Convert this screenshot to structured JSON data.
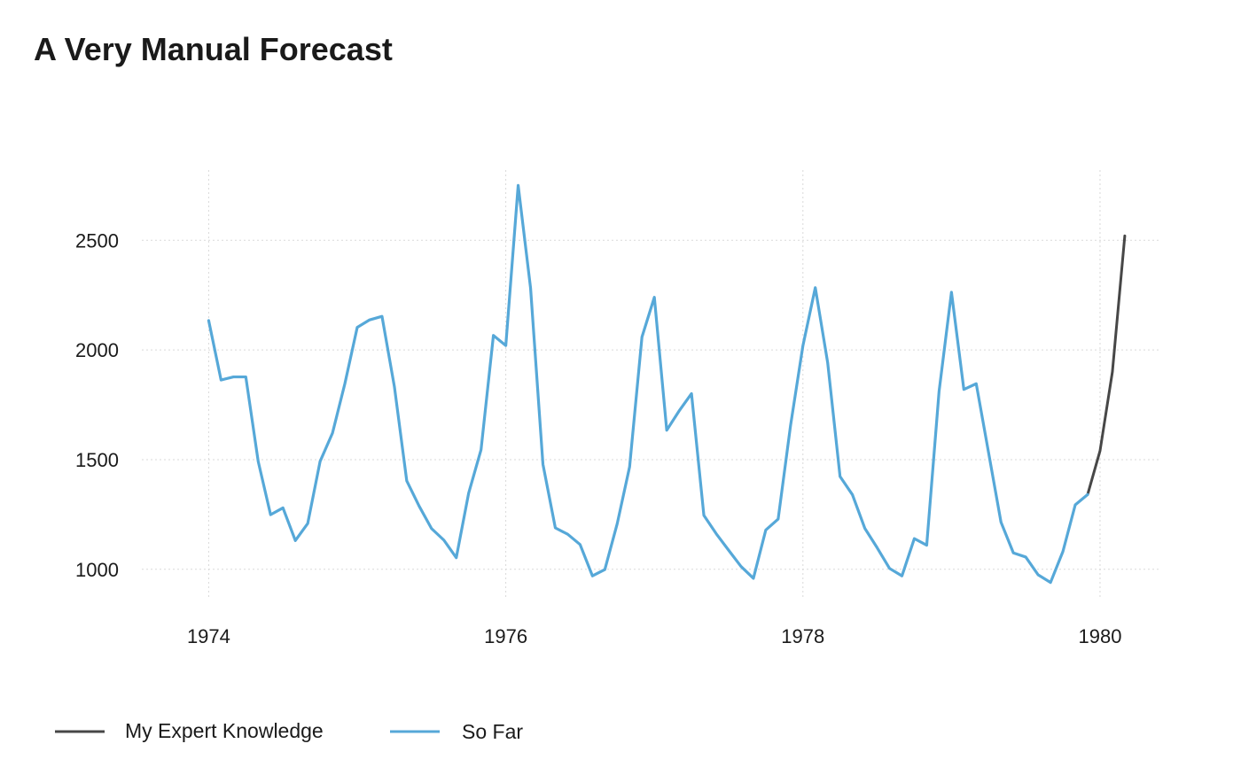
{
  "chart_data": {
    "type": "line",
    "title": "A Very Manual Forecast",
    "xlabel": "",
    "ylabel": "",
    "xlim": [
      1973.55,
      1980.4
    ],
    "ylim": [
      870,
      2820
    ],
    "x_ticks": [
      1974,
      1976,
      1978,
      1980
    ],
    "x_tick_labels": [
      "1974",
      "1976",
      "1978",
      "1980"
    ],
    "y_ticks": [
      1000,
      1500,
      2000,
      2500
    ],
    "y_tick_labels": [
      "1000",
      "1500",
      "2000",
      "2500"
    ],
    "grid": true,
    "legend_position": "bottom",
    "series": [
      {
        "name": "So Far",
        "color": "#56a8d8",
        "start_year": 1974,
        "period": 12,
        "values": [
          2134,
          1863,
          1877,
          1877,
          1492,
          1249,
          1280,
          1131,
          1209,
          1492,
          1621,
          1846,
          2103,
          2137,
          2153,
          1833,
          1403,
          1288,
          1186,
          1133,
          1053,
          1347,
          1545,
          2066,
          2020,
          2750,
          2283,
          1479,
          1189,
          1160,
          1113,
          970,
          999,
          1208,
          1467,
          2059,
          2240,
          1634,
          1722,
          1801,
          1246,
          1162,
          1087,
          1013,
          959,
          1179,
          1229,
          1655,
          2019,
          2284,
          1942,
          1423,
          1340,
          1187,
          1098,
          1004,
          970,
          1140,
          1110,
          1812,
          2263,
          1820,
          1846,
          1531,
          1215,
          1075,
          1056,
          975,
          940,
          1081,
          1294,
          1341
        ]
      },
      {
        "name": "My Expert Knowledge",
        "color": "#474747",
        "x": [
          1979.9167,
          1980.0,
          1980.0833,
          1980.1667
        ],
        "values": [
          1341,
          1540,
          1900,
          2520
        ]
      }
    ]
  }
}
